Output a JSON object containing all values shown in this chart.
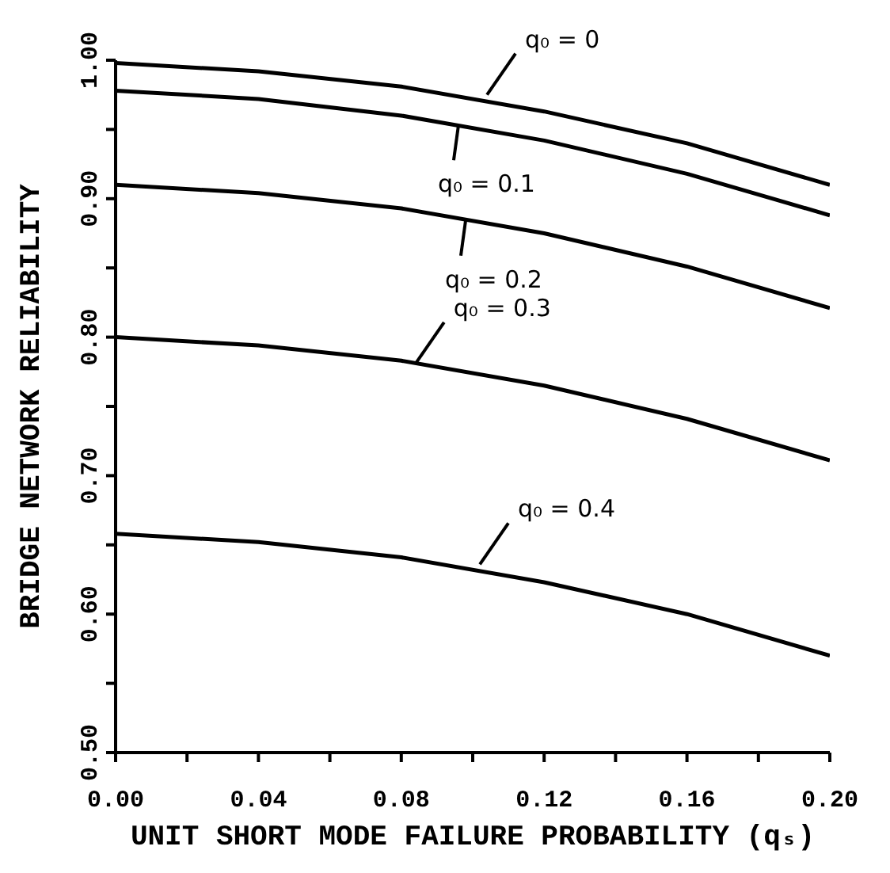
{
  "chart_data": {
    "type": "line",
    "xlabel": "UNIT SHORT MODE FAILURE PROBABILITY (qₛ)",
    "ylabel": "BRIDGE NETWORK RELIABILITY",
    "x": [
      0,
      0.04,
      0.08,
      0.12,
      0.16,
      0.2
    ],
    "series": [
      {
        "color": "#000000",
        "values": [
          0.998,
          0.992,
          0.981,
          0.963,
          0.94,
          0.91
        ]
      },
      {
        "color": "#000000",
        "values": [
          0.978,
          0.972,
          0.96,
          0.942,
          0.918,
          0.888
        ]
      },
      {
        "color": "#000000",
        "values": [
          0.91,
          0.904,
          0.893,
          0.875,
          0.851,
          0.821
        ]
      },
      {
        "color": "#000000",
        "values": [
          0.8,
          0.794,
          0.783,
          0.765,
          0.741,
          0.711
        ]
      },
      {
        "color": "#000000",
        "values": [
          0.658,
          0.652,
          0.641,
          0.623,
          0.6,
          0.57
        ]
      }
    ],
    "annotations": [
      {
        "text": "q₀ = 0",
        "x": 0.104,
        "y": 0.975
      },
      {
        "text": "q₀ = 0.1",
        "x": 0.096,
        "y": 0.953
      },
      {
        "text": "q₀ = 0.2",
        "x": 0.098,
        "y": 0.884
      },
      {
        "text": "q₀ = 0.3",
        "x": 0.084,
        "y": 0.781
      },
      {
        "text": "q₀ = 0.4",
        "x": 0.102,
        "y": 0.636
      }
    ],
    "xlim": [
      0,
      0.2
    ],
    "xticks": [
      {
        "value": 0,
        "label": "0.00"
      },
      {
        "value": 0.02,
        "label": null
      },
      {
        "value": 0.04,
        "label": "0.04"
      },
      {
        "value": 0.06,
        "label": null
      },
      {
        "value": 0.08,
        "label": "0.08"
      },
      {
        "value": 0.1,
        "label": null
      },
      {
        "value": 0.12,
        "label": "0.12"
      },
      {
        "value": 0.14,
        "label": null
      },
      {
        "value": 0.16,
        "label": "0.16"
      },
      {
        "value": 0.18,
        "label": null
      },
      {
        "value": 0.2,
        "label": "0.20"
      }
    ],
    "ylim": [
      0.5,
      1
    ],
    "yticks": [
      {
        "value": 0.5,
        "label": "0.50"
      },
      {
        "value": 0.55,
        "label": null
      },
      {
        "value": 0.6,
        "label": "0.60"
      },
      {
        "value": 0.65,
        "label": null
      },
      {
        "value": 0.7,
        "label": "0.70"
      },
      {
        "value": 0.75,
        "label": null
      },
      {
        "value": 0.8,
        "label": "0.80"
      },
      {
        "value": 0.85,
        "label": null
      },
      {
        "value": 0.9,
        "label": "0.90"
      },
      {
        "value": 0.95,
        "label": null
      },
      {
        "value": 1,
        "label": "1.00"
      }
    ],
    "grid": false,
    "legend": false,
    "marker": "none",
    "line_style": "solid"
  }
}
